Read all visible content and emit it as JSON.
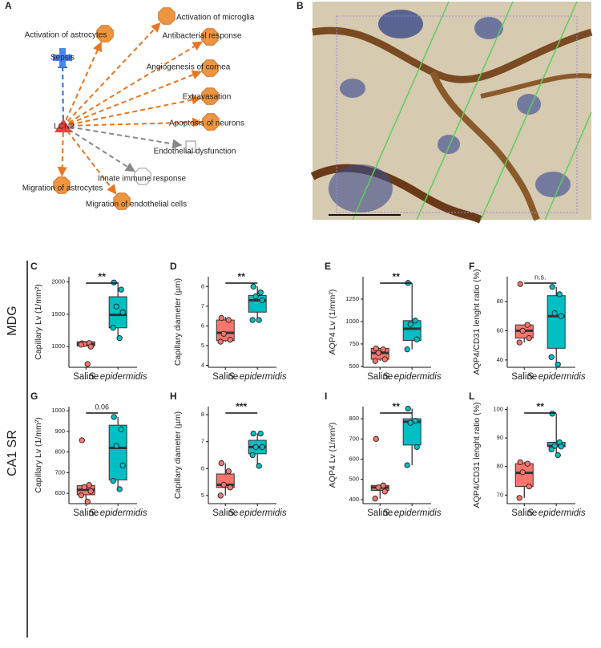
{
  "diagram": {
    "label": "A",
    "nodes": [
      {
        "label": "Activation of microglia"
      },
      {
        "label": "Activation of astrocytes"
      },
      {
        "label": "Antibacterial response"
      },
      {
        "label": "Sepsis"
      },
      {
        "label": "Angiogenesis of cornea"
      },
      {
        "label": "Extravasation"
      },
      {
        "label": "LCN2"
      },
      {
        "label": "Apoptosis of neurons"
      },
      {
        "label": "Endothelial dysfunction"
      },
      {
        "label": "Innate immune response"
      },
      {
        "label": "Migration of astrocytes"
      },
      {
        "label": "Migration of endothelial cells"
      }
    ]
  },
  "image": {
    "label": "B"
  },
  "row_labels": [
    "MDG",
    "CA1 SR"
  ],
  "chart_data": [
    {
      "type": "box",
      "label": "C",
      "y_label": "Capillary Lv (1/mm²)",
      "annotation": "**",
      "ylim": [
        680,
        2080
      ],
      "yticks": [
        1000,
        1500,
        2000
      ],
      "series": [
        {
          "name": "Saline",
          "color": "#f8766d",
          "min": 1000,
          "q1": 1010,
          "median": 1040,
          "q3": 1075,
          "max": 1080,
          "points": [
            1050,
            1055,
            1040,
            1000,
            1030,
            730
          ]
        },
        {
          "name": "S. epidermidis",
          "color": "#00bfc4",
          "min": 1130,
          "q1": 1290,
          "median": 1490,
          "q3": 1770,
          "max": 1990,
          "points": [
            1990,
            1880,
            1620,
            1530,
            1290,
            1130
          ]
        }
      ]
    },
    {
      "type": "box",
      "label": "D",
      "y_label": "Capillary diameter (µm)",
      "annotation": "**",
      "ylim": [
        3.9,
        8.5
      ],
      "yticks": [
        4,
        5,
        6,
        7,
        8
      ],
      "series": [
        {
          "name": "Saline",
          "color": "#f8766d",
          "min": 5.2,
          "q1": 5.25,
          "median": 5.65,
          "q3": 6.3,
          "max": 6.45,
          "points": [
            6.4,
            6.3,
            5.6,
            5.3,
            5.2
          ]
        },
        {
          "name": "S. epidermidis",
          "color": "#00bfc4",
          "min": 6.3,
          "q1": 6.7,
          "median": 7.3,
          "q3": 7.55,
          "max": 8.0,
          "points": [
            8.0,
            7.7,
            7.5,
            7.3,
            6.3,
            6.3
          ]
        }
      ]
    },
    {
      "type": "box",
      "label": "E",
      "y_label": "AQP4 Lv (1/mm²)",
      "annotation": "**",
      "ylim": [
        490,
        1500
      ],
      "yticks": [
        500,
        750,
        1000,
        1250
      ],
      "series": [
        {
          "name": "Saline",
          "color": "#f8766d",
          "min": 560,
          "q1": 580,
          "median": 650,
          "q3": 700,
          "max": 700,
          "points": [
            700,
            690,
            650,
            580,
            560
          ]
        },
        {
          "name": "S. epidermidis",
          "color": "#00bfc4",
          "min": 690,
          "q1": 790,
          "median": 920,
          "q3": 1010,
          "max": 1430,
          "points": [
            1430,
            1010,
            970,
            800,
            690
          ]
        }
      ]
    },
    {
      "type": "box",
      "label": "F",
      "y_label": "AQP4/CD31 lenght ratio (%)",
      "annotation": "n.s.",
      "ylim": [
        35,
        97
      ],
      "yticks": [
        40,
        60,
        80
      ],
      "series": [
        {
          "name": "Saline",
          "color": "#f8766d",
          "min": 52,
          "q1": 55,
          "median": 60,
          "q3": 64,
          "max": 64,
          "points": [
            92,
            64,
            60,
            55,
            52
          ]
        },
        {
          "name": "S. epidermidis",
          "color": "#00bfc4",
          "min": 37,
          "q1": 48,
          "median": 70,
          "q3": 84,
          "max": 90,
          "points": [
            90,
            85,
            72,
            70,
            42,
            37
          ]
        }
      ]
    },
    {
      "type": "box",
      "label": "G",
      "y_label": "Capillary Lv (1/mm²)",
      "annotation": "0.06",
      "ylim": [
        550,
        1020
      ],
      "yticks": [
        600,
        700,
        800,
        900,
        1000
      ],
      "series": [
        {
          "name": "Saline",
          "color": "#f8766d",
          "min": 560,
          "q1": 593,
          "median": 617,
          "q3": 637,
          "max": 640,
          "points": [
            857,
            640,
            630,
            610,
            590,
            560
          ]
        },
        {
          "name": "S. epidermidis",
          "color": "#00bfc4",
          "min": 620,
          "q1": 665,
          "median": 820,
          "q3": 930,
          "max": 970,
          "points": [
            970,
            910,
            830,
            735,
            660,
            620
          ]
        }
      ]
    },
    {
      "type": "box",
      "label": "H",
      "y_label": "Capillary diameter (µm)",
      "annotation": "***",
      "ylim": [
        4.7,
        8.3
      ],
      "yticks": [
        5,
        6,
        7,
        8
      ],
      "series": [
        {
          "name": "Saline",
          "color": "#f8766d",
          "min": 5.0,
          "q1": 5.3,
          "median": 5.4,
          "q3": 5.8,
          "max": 6.2,
          "points": [
            6.2,
            5.9,
            5.4,
            5.3,
            5.0
          ]
        },
        {
          "name": "S. epidermidis",
          "color": "#00bfc4",
          "min": 6.1,
          "q1": 6.55,
          "median": 6.8,
          "q3": 7.05,
          "max": 7.3,
          "points": [
            7.3,
            7.3,
            6.8,
            6.8,
            6.5,
            6.1
          ]
        }
      ]
    },
    {
      "type": "box",
      "label": "I",
      "y_label": "AQP4 Lv (1/mm²)",
      "annotation": "**",
      "ylim": [
        380,
        860
      ],
      "yticks": [
        400,
        500,
        600,
        700,
        800
      ],
      "series": [
        {
          "name": "Saline",
          "color": "#f8766d",
          "min": 405,
          "q1": 445,
          "median": 460,
          "q3": 470,
          "max": 470,
          "points": [
            700,
            470,
            460,
            440,
            405
          ]
        },
        {
          "name": "S. epidermidis",
          "color": "#00bfc4",
          "min": 570,
          "q1": 670,
          "median": 785,
          "q3": 800,
          "max": 850,
          "points": [
            850,
            790,
            780,
            660,
            570
          ]
        }
      ]
    },
    {
      "type": "box",
      "label": "L",
      "y_label": "AQP4/CD31 lenght ratio (%)",
      "annotation": "**",
      "ylim": [
        67,
        101
      ],
      "yticks": [
        70,
        80,
        90,
        100
      ],
      "series": [
        {
          "name": "Saline",
          "color": "#f8766d",
          "min": 69,
          "q1": 73,
          "median": 77.8,
          "q3": 81,
          "max": 81.5,
          "points": [
            81.5,
            81,
            78,
            73,
            69
          ]
        },
        {
          "name": "S. epidermidis",
          "color": "#00bfc4",
          "min": 84,
          "q1": 87,
          "median": 87.2,
          "q3": 88.5,
          "max": 98.5,
          "points": [
            98.5,
            88.5,
            87.2,
            87,
            86,
            84
          ]
        }
      ]
    }
  ]
}
